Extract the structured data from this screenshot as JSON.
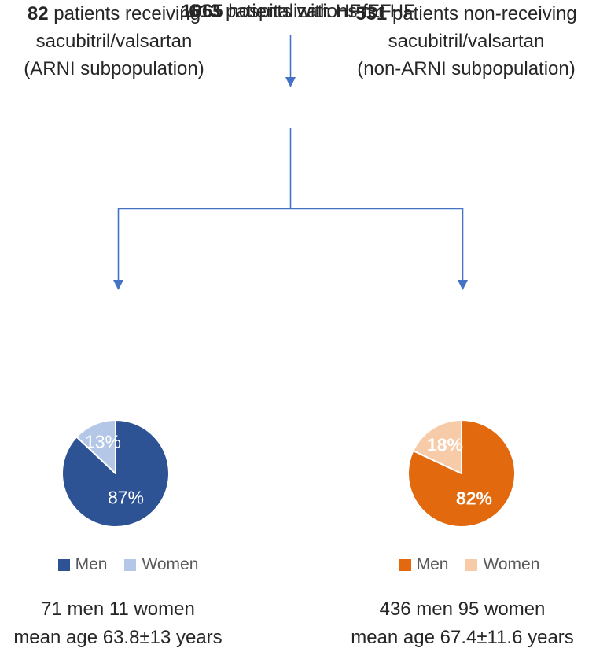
{
  "colors": {
    "text_dark": "#262626",
    "legend_text": "#595959",
    "connector": "#4472C4",
    "slice_label": "#FFFFFF",
    "men_blue": "#2E5395",
    "women_blue": "#B4C7E7",
    "men_orange": "#E2690E",
    "women_orange": "#F7CBA8"
  },
  "flow": {
    "node1": {
      "count": "1065",
      "label": " hospitalizations for HF"
    },
    "node2": {
      "count": "613",
      "label": " patients with HFrEF"
    },
    "left_branch": {
      "count": "82",
      "line1_rest": " patients receiving",
      "line2": "sacubitril/valsartan",
      "line3": "(ARNI subpopulation)"
    },
    "right_branch": {
      "count": "531",
      "line1_rest": " patients non-receiving",
      "line2": "sacubitril/valsartan",
      "line3": "(non-ARNI subpopulation)"
    }
  },
  "chart_data": [
    {
      "type": "pie",
      "labels": [
        "Men",
        "Women"
      ],
      "values": [
        87,
        13
      ],
      "unit": "%",
      "colors": [
        "#2E5395",
        "#B4C7E7"
      ],
      "slice_labels": [
        "87%",
        "13%"
      ],
      "legend_position": "bottom",
      "start_angle": "12-oclock-clockwise"
    },
    {
      "type": "pie",
      "labels": [
        "Men",
        "Women"
      ],
      "values": [
        82,
        18
      ],
      "unit": "%",
      "colors": [
        "#E2690E",
        "#F7CBA8"
      ],
      "slice_labels": [
        "82%",
        "18%"
      ],
      "legend_position": "bottom",
      "start_angle": "12-oclock-clockwise"
    }
  ],
  "stats": {
    "left": {
      "line1": "71 men 11 women",
      "line2": "mean age 63.8±13 years"
    },
    "right": {
      "line1": "436 men 95 women",
      "line2": "mean age 67.4±11.6 years"
    }
  }
}
